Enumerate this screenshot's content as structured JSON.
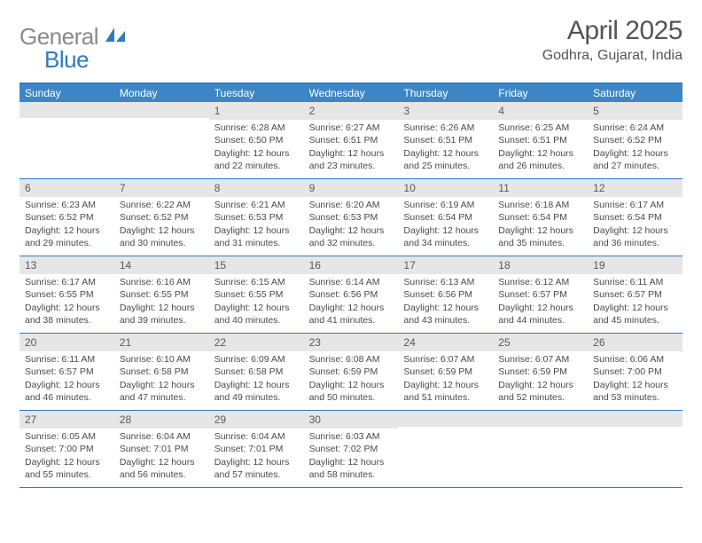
{
  "brand": {
    "gray": "General",
    "blue": "Blue"
  },
  "header": {
    "title": "April 2025",
    "location": "Godhra, Gujarat, India"
  },
  "colors": {
    "accent": "#3d86c6",
    "rule": "#2f7ac0",
    "band": "#e6e6e6",
    "text": "#4a4a4a",
    "title": "#555555"
  },
  "dow": [
    "Sunday",
    "Monday",
    "Tuesday",
    "Wednesday",
    "Thursday",
    "Friday",
    "Saturday"
  ],
  "weeks": [
    [
      null,
      null,
      {
        "n": "1",
        "sr": "Sunrise: 6:28 AM",
        "ss": "Sunset: 6:50 PM",
        "dl": "Daylight: 12 hours and 22 minutes."
      },
      {
        "n": "2",
        "sr": "Sunrise: 6:27 AM",
        "ss": "Sunset: 6:51 PM",
        "dl": "Daylight: 12 hours and 23 minutes."
      },
      {
        "n": "3",
        "sr": "Sunrise: 6:26 AM",
        "ss": "Sunset: 6:51 PM",
        "dl": "Daylight: 12 hours and 25 minutes."
      },
      {
        "n": "4",
        "sr": "Sunrise: 6:25 AM",
        "ss": "Sunset: 6:51 PM",
        "dl": "Daylight: 12 hours and 26 minutes."
      },
      {
        "n": "5",
        "sr": "Sunrise: 6:24 AM",
        "ss": "Sunset: 6:52 PM",
        "dl": "Daylight: 12 hours and 27 minutes."
      }
    ],
    [
      {
        "n": "6",
        "sr": "Sunrise: 6:23 AM",
        "ss": "Sunset: 6:52 PM",
        "dl": "Daylight: 12 hours and 29 minutes."
      },
      {
        "n": "7",
        "sr": "Sunrise: 6:22 AM",
        "ss": "Sunset: 6:52 PM",
        "dl": "Daylight: 12 hours and 30 minutes."
      },
      {
        "n": "8",
        "sr": "Sunrise: 6:21 AM",
        "ss": "Sunset: 6:53 PM",
        "dl": "Daylight: 12 hours and 31 minutes."
      },
      {
        "n": "9",
        "sr": "Sunrise: 6:20 AM",
        "ss": "Sunset: 6:53 PM",
        "dl": "Daylight: 12 hours and 32 minutes."
      },
      {
        "n": "10",
        "sr": "Sunrise: 6:19 AM",
        "ss": "Sunset: 6:54 PM",
        "dl": "Daylight: 12 hours and 34 minutes."
      },
      {
        "n": "11",
        "sr": "Sunrise: 6:18 AM",
        "ss": "Sunset: 6:54 PM",
        "dl": "Daylight: 12 hours and 35 minutes."
      },
      {
        "n": "12",
        "sr": "Sunrise: 6:17 AM",
        "ss": "Sunset: 6:54 PM",
        "dl": "Daylight: 12 hours and 36 minutes."
      }
    ],
    [
      {
        "n": "13",
        "sr": "Sunrise: 6:17 AM",
        "ss": "Sunset: 6:55 PM",
        "dl": "Daylight: 12 hours and 38 minutes."
      },
      {
        "n": "14",
        "sr": "Sunrise: 6:16 AM",
        "ss": "Sunset: 6:55 PM",
        "dl": "Daylight: 12 hours and 39 minutes."
      },
      {
        "n": "15",
        "sr": "Sunrise: 6:15 AM",
        "ss": "Sunset: 6:55 PM",
        "dl": "Daylight: 12 hours and 40 minutes."
      },
      {
        "n": "16",
        "sr": "Sunrise: 6:14 AM",
        "ss": "Sunset: 6:56 PM",
        "dl": "Daylight: 12 hours and 41 minutes."
      },
      {
        "n": "17",
        "sr": "Sunrise: 6:13 AM",
        "ss": "Sunset: 6:56 PM",
        "dl": "Daylight: 12 hours and 43 minutes."
      },
      {
        "n": "18",
        "sr": "Sunrise: 6:12 AM",
        "ss": "Sunset: 6:57 PM",
        "dl": "Daylight: 12 hours and 44 minutes."
      },
      {
        "n": "19",
        "sr": "Sunrise: 6:11 AM",
        "ss": "Sunset: 6:57 PM",
        "dl": "Daylight: 12 hours and 45 minutes."
      }
    ],
    [
      {
        "n": "20",
        "sr": "Sunrise: 6:11 AM",
        "ss": "Sunset: 6:57 PM",
        "dl": "Daylight: 12 hours and 46 minutes."
      },
      {
        "n": "21",
        "sr": "Sunrise: 6:10 AM",
        "ss": "Sunset: 6:58 PM",
        "dl": "Daylight: 12 hours and 47 minutes."
      },
      {
        "n": "22",
        "sr": "Sunrise: 6:09 AM",
        "ss": "Sunset: 6:58 PM",
        "dl": "Daylight: 12 hours and 49 minutes."
      },
      {
        "n": "23",
        "sr": "Sunrise: 6:08 AM",
        "ss": "Sunset: 6:59 PM",
        "dl": "Daylight: 12 hours and 50 minutes."
      },
      {
        "n": "24",
        "sr": "Sunrise: 6:07 AM",
        "ss": "Sunset: 6:59 PM",
        "dl": "Daylight: 12 hours and 51 minutes."
      },
      {
        "n": "25",
        "sr": "Sunrise: 6:07 AM",
        "ss": "Sunset: 6:59 PM",
        "dl": "Daylight: 12 hours and 52 minutes."
      },
      {
        "n": "26",
        "sr": "Sunrise: 6:06 AM",
        "ss": "Sunset: 7:00 PM",
        "dl": "Daylight: 12 hours and 53 minutes."
      }
    ],
    [
      {
        "n": "27",
        "sr": "Sunrise: 6:05 AM",
        "ss": "Sunset: 7:00 PM",
        "dl": "Daylight: 12 hours and 55 minutes."
      },
      {
        "n": "28",
        "sr": "Sunrise: 6:04 AM",
        "ss": "Sunset: 7:01 PM",
        "dl": "Daylight: 12 hours and 56 minutes."
      },
      {
        "n": "29",
        "sr": "Sunrise: 6:04 AM",
        "ss": "Sunset: 7:01 PM",
        "dl": "Daylight: 12 hours and 57 minutes."
      },
      {
        "n": "30",
        "sr": "Sunrise: 6:03 AM",
        "ss": "Sunset: 7:02 PM",
        "dl": "Daylight: 12 hours and 58 minutes."
      },
      null,
      null,
      null
    ]
  ]
}
